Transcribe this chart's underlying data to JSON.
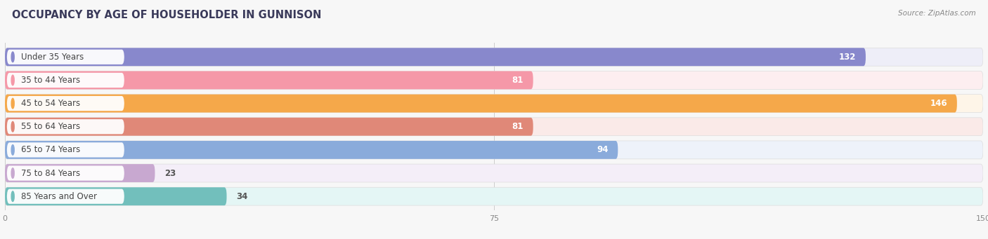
{
  "title": "OCCUPANCY BY AGE OF HOUSEHOLDER IN GUNNISON",
  "source": "Source: ZipAtlas.com",
  "categories": [
    "Under 35 Years",
    "35 to 44 Years",
    "45 to 54 Years",
    "55 to 64 Years",
    "65 to 74 Years",
    "75 to 84 Years",
    "85 Years and Over"
  ],
  "values": [
    132,
    81,
    146,
    81,
    94,
    23,
    34
  ],
  "bar_colors": [
    "#8888cc",
    "#f598a8",
    "#f5a84a",
    "#e08878",
    "#8aabdb",
    "#c8a8d0",
    "#72bfbc"
  ],
  "bar_bg_colors": [
    "#eeeef8",
    "#fdeef0",
    "#fef5e8",
    "#faeae8",
    "#eef2fa",
    "#f4eef8",
    "#e4f6f5"
  ],
  "xlim": [
    0,
    150
  ],
  "xticks": [
    0,
    75,
    150
  ],
  "value_fontsize": 8.5,
  "label_fontsize": 8.5,
  "title_fontsize": 10.5,
  "background_color": "#f7f7f7"
}
